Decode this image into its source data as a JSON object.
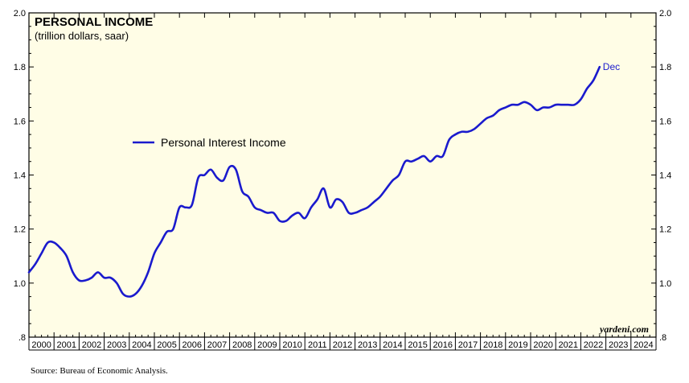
{
  "colors": {
    "plot_bg": "#fffde6",
    "series": "#1a1acd",
    "axis": "#000000"
  },
  "chart_data": {
    "type": "line",
    "title": "PERSONAL INCOME",
    "subtitle": "(trillion dollars, saar)",
    "ylim": [
      0.8,
      2.0
    ],
    "xlim": [
      2000.0,
      2025.0
    ],
    "y_ticks": [
      ".8",
      "1.0",
      "1.2",
      "1.4",
      "1.6",
      "1.8",
      "2.0"
    ],
    "y_tick_values": [
      0.8,
      1.0,
      1.2,
      1.4,
      1.6,
      1.8,
      2.0
    ],
    "x_tick_labels": [
      "2000",
      "2001",
      "2002",
      "2003",
      "2004",
      "2005",
      "2006",
      "2007",
      "2008",
      "2009",
      "2010",
      "2011",
      "2012",
      "2013",
      "2014",
      "2015",
      "2016",
      "2017",
      "2018",
      "2019",
      "2020",
      "2021",
      "2022",
      "2023",
      "2024"
    ],
    "legend": "Personal Interest Income",
    "end_annotation": "Dec",
    "brand": "yardeni.com",
    "source": "Source: Bureau of Economic Analysis.",
    "series": [
      {
        "name": "Personal Interest Income",
        "x": [
          2000.0,
          2000.25,
          2000.5,
          2000.75,
          2001.0,
          2001.25,
          2001.5,
          2001.75,
          2002.0,
          2002.25,
          2002.5,
          2002.75,
          2003.0,
          2003.25,
          2003.5,
          2003.75,
          2004.0,
          2004.25,
          2004.5,
          2004.75,
          2005.0,
          2005.25,
          2005.5,
          2005.75,
          2006.0,
          2006.25,
          2006.5,
          2006.75,
          2007.0,
          2007.25,
          2007.5,
          2007.75,
          2008.0,
          2008.25,
          2008.5,
          2008.75,
          2009.0,
          2009.25,
          2009.5,
          2009.75,
          2010.0,
          2010.25,
          2010.5,
          2010.75,
          2011.0,
          2011.25,
          2011.5,
          2011.75,
          2012.0,
          2012.25,
          2012.5,
          2012.75,
          2013.0,
          2013.25,
          2013.5,
          2013.75,
          2014.0,
          2014.25,
          2014.5,
          2014.75,
          2015.0,
          2015.25,
          2015.5,
          2015.75,
          2016.0,
          2016.25,
          2016.5,
          2016.75,
          2017.0,
          2017.25,
          2017.5,
          2017.75,
          2018.0,
          2018.25,
          2018.5,
          2018.75,
          2019.0,
          2019.25,
          2019.5,
          2019.75,
          2020.0,
          2020.25,
          2020.5,
          2020.75,
          2021.0,
          2021.25,
          2021.5,
          2021.75,
          2022.0,
          2022.25,
          2022.5,
          2022.75
        ],
        "values": [
          1.04,
          1.07,
          1.11,
          1.15,
          1.15,
          1.13,
          1.1,
          1.04,
          1.01,
          1.01,
          1.02,
          1.04,
          1.02,
          1.02,
          1.0,
          0.96,
          0.95,
          0.96,
          0.99,
          1.04,
          1.11,
          1.15,
          1.19,
          1.2,
          1.28,
          1.28,
          1.29,
          1.39,
          1.4,
          1.42,
          1.39,
          1.38,
          1.43,
          1.42,
          1.34,
          1.32,
          1.28,
          1.27,
          1.26,
          1.26,
          1.23,
          1.23,
          1.25,
          1.26,
          1.24,
          1.28,
          1.31,
          1.35,
          1.28,
          1.31,
          1.3,
          1.26,
          1.26,
          1.27,
          1.28,
          1.3,
          1.32,
          1.35,
          1.38,
          1.4,
          1.45,
          1.45,
          1.46,
          1.47,
          1.45,
          1.47,
          1.47,
          1.53,
          1.55,
          1.56,
          1.56,
          1.57,
          1.59,
          1.61,
          1.62,
          1.64,
          1.65,
          1.66,
          1.66,
          1.67,
          1.66,
          1.64,
          1.65,
          1.65,
          1.66,
          1.66,
          1.66,
          1.66,
          1.68,
          1.72,
          1.75,
          1.8
        ]
      }
    ]
  }
}
